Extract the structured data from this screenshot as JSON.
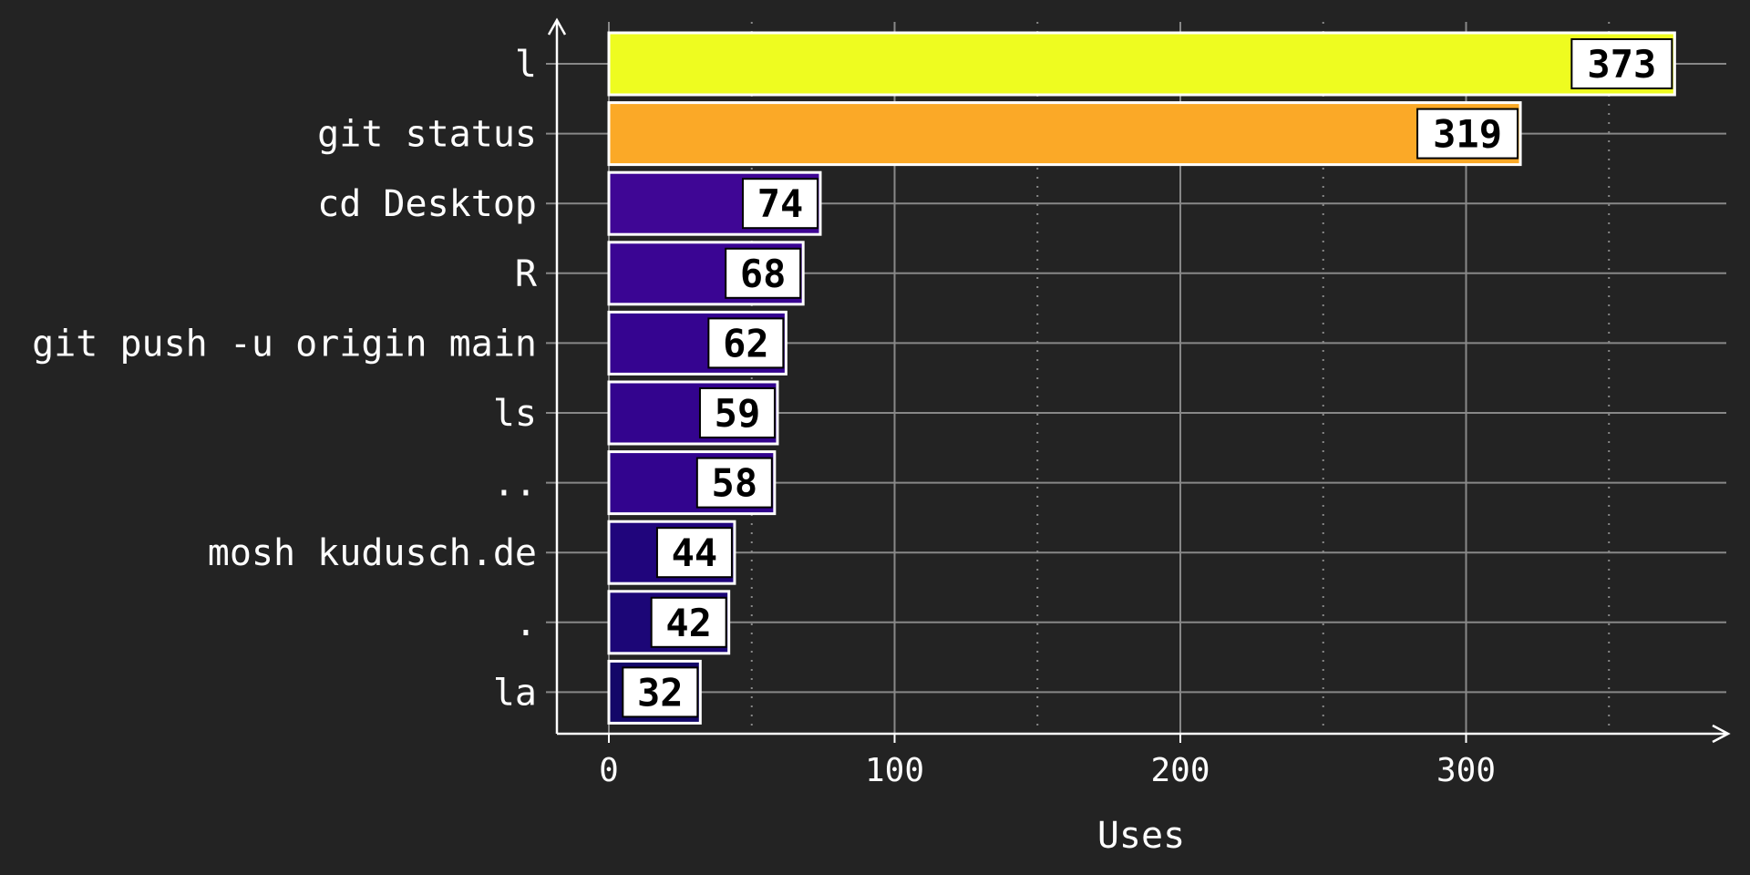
{
  "chart_data": {
    "type": "bar",
    "orientation": "horizontal",
    "categories": [
      "l",
      "git status",
      "cd Desktop",
      "R",
      "git push -u origin main",
      "ls",
      "..",
      "mosh kudusch.de",
      ".",
      "la"
    ],
    "values": [
      373,
      319,
      74,
      68,
      62,
      59,
      58,
      44,
      42,
      32
    ],
    "bar_colors": [
      "#eefc20",
      "#fba927",
      "#3f0695",
      "#3a0593",
      "#350490",
      "#33048e",
      "#32048e",
      "#20057c",
      "#1c0677",
      "#130768"
    ],
    "xlabel": "Uses",
    "ylabel": "",
    "xlim": [
      -18,
      390
    ],
    "xticks": [
      0,
      100,
      200,
      300
    ],
    "xtick_labels": [
      "0",
      "100",
      "200",
      "300"
    ],
    "minor_xticks": [
      50,
      150,
      250,
      350
    ],
    "grid": true,
    "data_labels": true,
    "background": "#232323",
    "foreground": "#ffffff",
    "grid_color": "#888888"
  }
}
